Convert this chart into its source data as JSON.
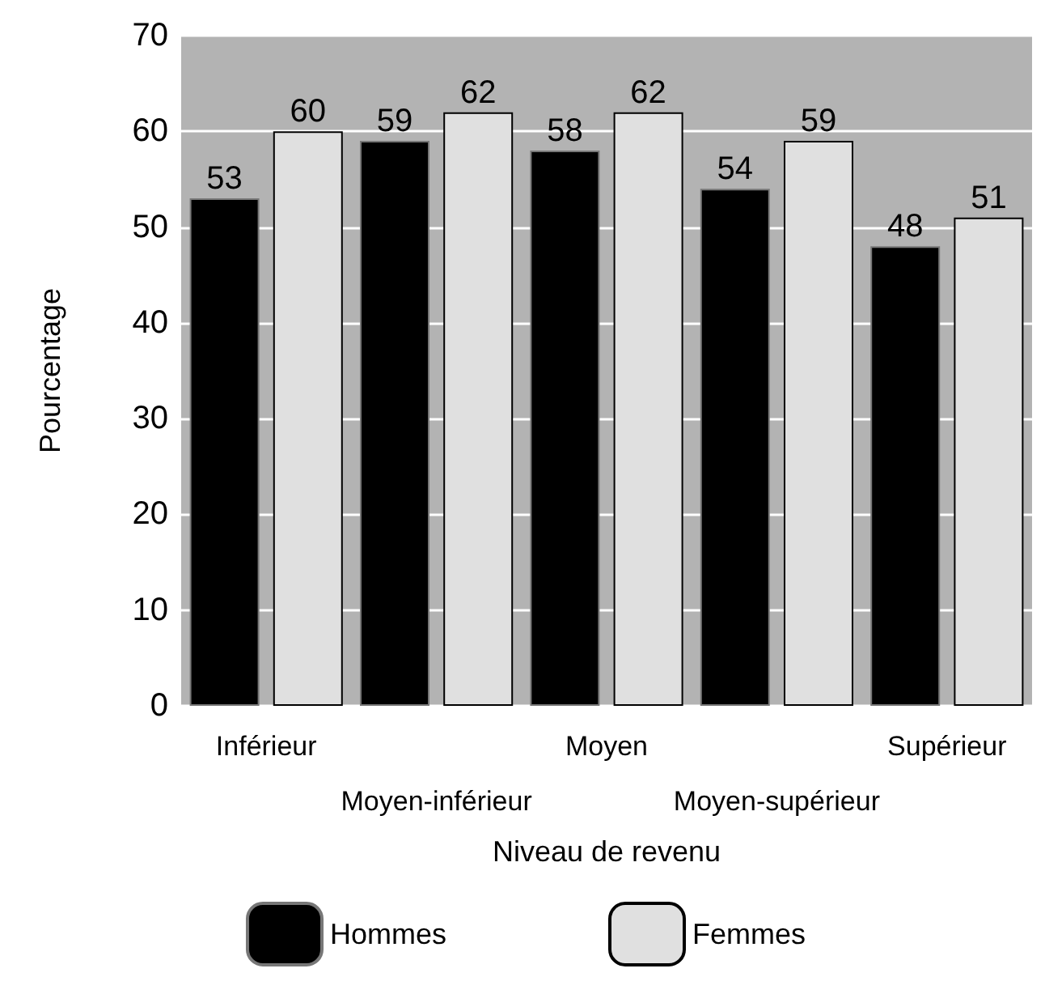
{
  "chart_data": {
    "type": "bar",
    "xlabel": "Niveau de revenu",
    "ylabel": "Pourcentage",
    "categories": [
      "Inférieur",
      "Moyen-inférieur",
      "Moyen",
      "Moyen-supérieur",
      "Supérieur"
    ],
    "series": [
      {
        "name": "Hommes",
        "color": "#000000",
        "values": [
          53,
          59,
          58,
          54,
          48
        ]
      },
      {
        "name": "Femmes",
        "color": "#e0e0e0",
        "values": [
          60,
          62,
          62,
          59,
          51
        ]
      }
    ],
    "ylim": [
      0,
      70
    ],
    "yticks": [
      0,
      10,
      20,
      30,
      40,
      50,
      60,
      70
    ],
    "grid": "y",
    "legend": "bottom",
    "data_labels": true
  }
}
